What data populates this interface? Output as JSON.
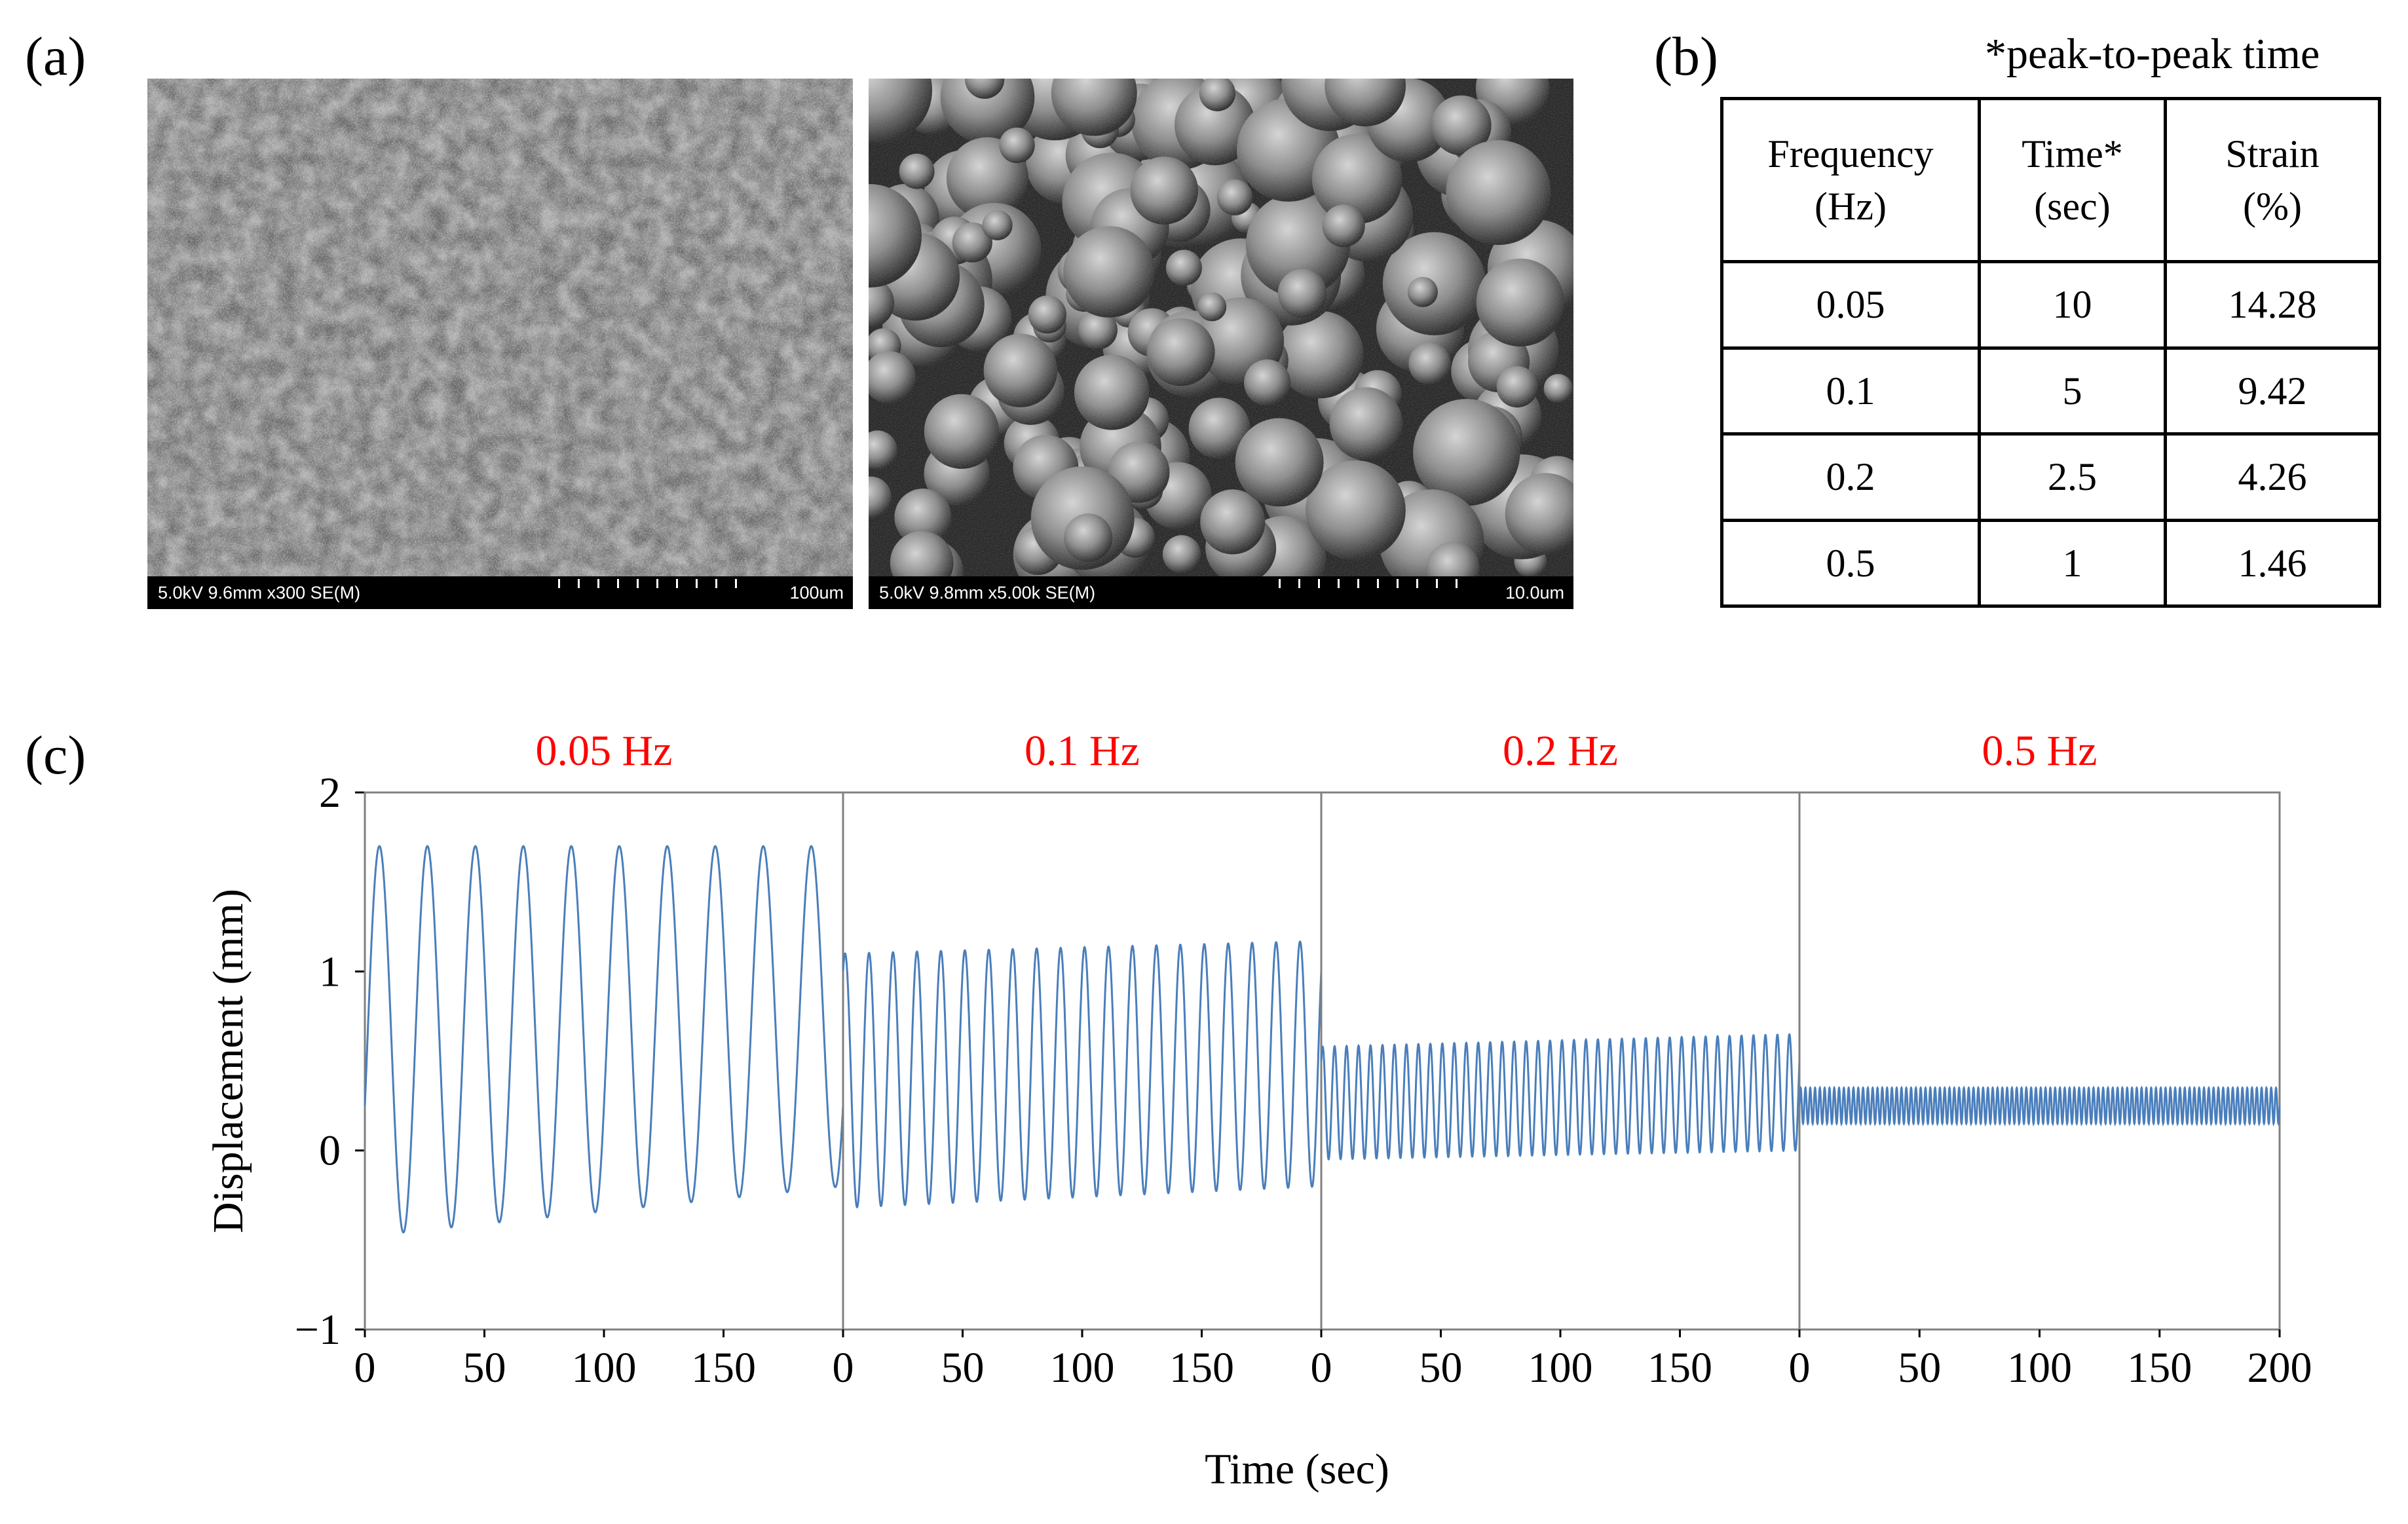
{
  "panels": {
    "a": "(a)",
    "b": "(b)",
    "c": "(c)"
  },
  "sem_images": [
    {
      "params": "5.0kV 9.6mm x300 SE(M)",
      "scale": "100um"
    },
    {
      "params": "5.0kV 9.8mm x5.00k SE(M)",
      "scale": "10.0um"
    }
  ],
  "table": {
    "footnote": "*peak-to-peak time",
    "headers": [
      [
        "Frequency",
        "(Hz)"
      ],
      [
        "Time*",
        "(sec)"
      ],
      [
        "Strain",
        "(%)"
      ]
    ],
    "rows": [
      [
        "0.05",
        "10",
        "14.28"
      ],
      [
        "0.1",
        "5",
        "9.42"
      ],
      [
        "0.2",
        "2.5",
        "4.26"
      ],
      [
        "0.5",
        "1",
        "1.46"
      ]
    ]
  },
  "chart_data": {
    "type": "line",
    "ylabel": "Displacement (mm)",
    "xlabel": "Time (sec)",
    "ylim": [
      -1,
      2
    ],
    "yticks": [
      "2",
      "1",
      "0",
      "−1"
    ],
    "yticks_values": [
      2,
      1,
      0,
      -1
    ],
    "xlim": [
      0,
      200
    ],
    "series_color": "#4a7ebb",
    "label_color": "#ff0000",
    "subplots": [
      {
        "label": "0.05 Hz",
        "freq": 0.05,
        "xticks": [
          "0",
          "50",
          "100",
          "150"
        ],
        "xticks_values": [
          0,
          50,
          100,
          150
        ],
        "y_max_start": 1.7,
        "y_max_end": 1.7,
        "y_min_start": -0.48,
        "y_min_end": -0.2,
        "start_value": 0.25
      },
      {
        "label": "0.1 Hz",
        "freq": 0.1,
        "xticks": [
          "0",
          "50",
          "100",
          "150"
        ],
        "xticks_values": [
          0,
          50,
          100,
          150
        ],
        "y_max_start": 1.1,
        "y_max_end": 1.17,
        "y_min_start": -0.32,
        "y_min_end": -0.2,
        "start_value": 1.0
      },
      {
        "label": "0.2 Hz",
        "freq": 0.2,
        "xticks": [
          "0",
          "50",
          "100",
          "150"
        ],
        "xticks_values": [
          0,
          50,
          100,
          150
        ],
        "y_max_start": 0.58,
        "y_max_end": 0.65,
        "y_min_start": -0.05,
        "y_min_end": 0.0,
        "start_value": 0.5
      },
      {
        "label": "0.5 Hz",
        "freq": 0.5,
        "xticks": [
          "0",
          "50",
          "100",
          "150",
          "200"
        ],
        "xticks_values": [
          0,
          50,
          100,
          150,
          200
        ],
        "y_max_start": 0.35,
        "y_max_end": 0.35,
        "y_min_start": 0.15,
        "y_min_end": 0.15,
        "start_value": 0.25
      }
    ]
  }
}
